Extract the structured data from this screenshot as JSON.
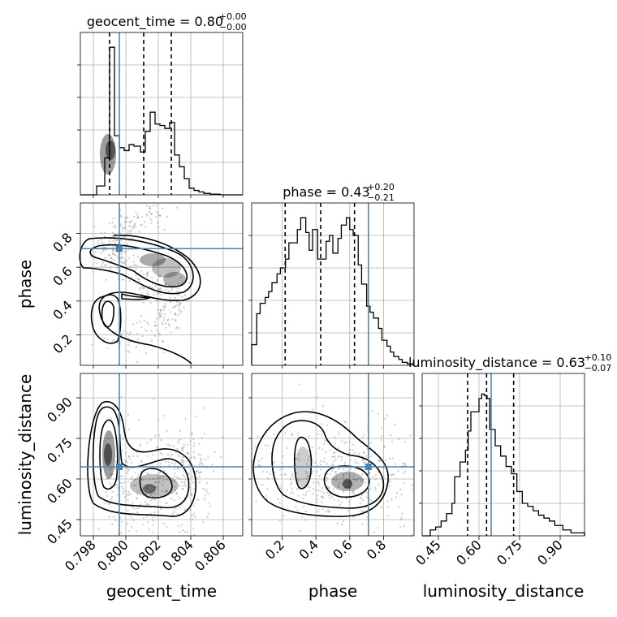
{
  "chart_data": {
    "type": "corner",
    "parameters": [
      "geocent_time",
      "phase",
      "luminosity_distance"
    ],
    "titles": [
      {
        "label": "geocent_time = 0.80",
        "upper": "+0.00",
        "lower": "−0.00"
      },
      {
        "label": "phase = 0.43",
        "upper": "+0.20",
        "lower": "−0.21"
      },
      {
        "label": "luminosity_distance = 0.63",
        "upper": "+0.10",
        "lower": "−0.07"
      }
    ],
    "axis_labels": [
      "geocent_time",
      "phase",
      "luminosity_distance"
    ],
    "ranges": [
      [
        0.7972,
        0.8072
      ],
      [
        0.02,
        0.98
      ],
      [
        0.39,
        0.99
      ]
    ],
    "tick_values": [
      [
        0.798,
        0.8,
        0.802,
        0.804,
        0.806
      ],
      [
        0.2,
        0.4,
        0.6,
        0.8
      ],
      [
        0.45,
        0.6,
        0.75,
        0.9
      ]
    ],
    "tick_labels": [
      [
        "0.798",
        "0.800",
        "0.802",
        "0.804",
        "0.806"
      ],
      [
        "0.2",
        "0.4",
        "0.6",
        "0.8"
      ],
      [
        "0.45",
        "0.60",
        "0.75",
        "0.90"
      ]
    ],
    "truths": [
      0.7996,
      0.71,
      0.645
    ],
    "quantiles": [
      [
        0.799,
        0.8011,
        0.8028
      ],
      [
        0.218,
        0.428,
        0.628
      ],
      [
        0.558,
        0.628,
        0.728
      ]
    ],
    "histograms": [
      {
        "edges": [
          0.7972,
          0.7982,
          0.7987,
          0.799,
          0.7993,
          0.7996,
          0.7999,
          0.8002,
          0.8005,
          0.8009,
          0.8012,
          0.8015,
          0.8018,
          0.8021,
          0.8024,
          0.8027,
          0.803,
          0.8033,
          0.8036,
          0.8039,
          0.8042,
          0.8045,
          0.8048,
          0.8052,
          0.8058,
          0.8072
        ],
        "counts": [
          0,
          0.06,
          0.25,
          1.0,
          0.4,
          0.32,
          0.3,
          0.34,
          0.33,
          0.29,
          0.43,
          0.56,
          0.48,
          0.47,
          0.45,
          0.49,
          0.27,
          0.19,
          0.11,
          0.045,
          0.03,
          0.02,
          0.01,
          0.005,
          0
        ]
      },
      {
        "edges": [
          0.02,
          0.05,
          0.07,
          0.1,
          0.12,
          0.14,
          0.17,
          0.19,
          0.22,
          0.24,
          0.26,
          0.29,
          0.31,
          0.34,
          0.36,
          0.38,
          0.41,
          0.43,
          0.46,
          0.48,
          0.5,
          0.53,
          0.55,
          0.58,
          0.6,
          0.62,
          0.65,
          0.67,
          0.7,
          0.72,
          0.74,
          0.77,
          0.79,
          0.82,
          0.84,
          0.86,
          0.89,
          0.91,
          0.94,
          0.98
        ],
        "counts": [
          0.14,
          0.35,
          0.42,
          0.46,
          0.5,
          0.56,
          0.62,
          0.66,
          0.72,
          0.83,
          0.83,
          0.92,
          1.0,
          0.9,
          0.78,
          0.92,
          0.72,
          0.72,
          0.84,
          0.88,
          0.76,
          0.86,
          0.95,
          1.0,
          0.92,
          0.88,
          0.68,
          0.55,
          0.4,
          0.36,
          0.32,
          0.25,
          0.17,
          0.13,
          0.09,
          0.06,
          0.04,
          0.02,
          0.01
        ]
      },
      {
        "edges": [
          0.39,
          0.42,
          0.44,
          0.46,
          0.48,
          0.5,
          0.51,
          0.53,
          0.55,
          0.56,
          0.57,
          0.58,
          0.6,
          0.61,
          0.62,
          0.63,
          0.64,
          0.66,
          0.68,
          0.7,
          0.72,
          0.74,
          0.76,
          0.78,
          0.8,
          0.82,
          0.84,
          0.86,
          0.88,
          0.91,
          0.94,
          0.99
        ],
        "counts": [
          0.0,
          0.04,
          0.06,
          0.1,
          0.15,
          0.22,
          0.4,
          0.5,
          0.58,
          0.71,
          0.84,
          0.84,
          0.93,
          0.96,
          0.95,
          0.93,
          0.72,
          0.61,
          0.54,
          0.47,
          0.42,
          0.3,
          0.22,
          0.2,
          0.17,
          0.14,
          0.12,
          0.1,
          0.07,
          0.04,
          0.02
        ]
      }
    ]
  }
}
